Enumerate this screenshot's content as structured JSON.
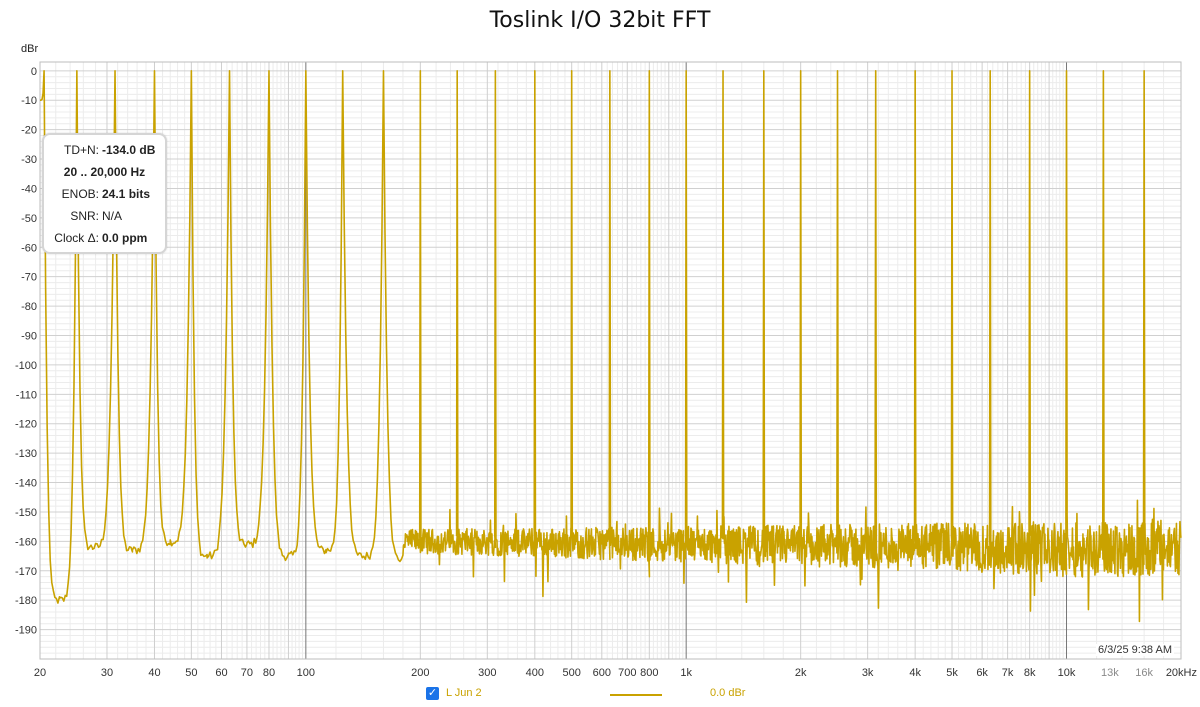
{
  "chart_data": {
    "type": "line",
    "title": "Toslink I/O 32bit FFT",
    "ylabel": "dBr",
    "xlabel": "",
    "x_scale": "log",
    "xlim": [
      20,
      20000
    ],
    "ylim": [
      -200,
      3
    ],
    "grid": true,
    "y_ticks": [
      "0",
      "-10",
      "-20",
      "-30",
      "-40",
      "-50",
      "-60",
      "-70",
      "-80",
      "-90",
      "-100",
      "-110",
      "-120",
      "-130",
      "-140",
      "-150",
      "-160",
      "-170",
      "-180",
      "-190"
    ],
    "x_ticks": [
      {
        "value": 20,
        "label": "20"
      },
      {
        "value": 30,
        "label": "30"
      },
      {
        "value": 40,
        "label": "40"
      },
      {
        "value": 50,
        "label": "50"
      },
      {
        "value": 60,
        "label": "60"
      },
      {
        "value": 70,
        "label": "70"
      },
      {
        "value": 80,
        "label": "80"
      },
      {
        "value": 100,
        "label": "100"
      },
      {
        "value": 200,
        "label": "200"
      },
      {
        "value": 300,
        "label": "300"
      },
      {
        "value": 400,
        "label": "400"
      },
      {
        "value": 500,
        "label": "500"
      },
      {
        "value": 600,
        "label": "600"
      },
      {
        "value": 700,
        "label": "700"
      },
      {
        "value": 800,
        "label": "800"
      },
      {
        "value": 1000,
        "label": "1k"
      },
      {
        "value": 2000,
        "label": "2k"
      },
      {
        "value": 3000,
        "label": "3k"
      },
      {
        "value": 4000,
        "label": "4k"
      },
      {
        "value": 5000,
        "label": "5k"
      },
      {
        "value": 6000,
        "label": "6k"
      },
      {
        "value": 7000,
        "label": "7k"
      },
      {
        "value": 8000,
        "label": "8k"
      },
      {
        "value": 10000,
        "label": "10k"
      },
      {
        "value": 13000,
        "label": "13k",
        "light": true
      },
      {
        "value": 16000,
        "label": "16k",
        "light": true
      },
      {
        "value": 20000,
        "label": "20kHz"
      }
    ],
    "series": [
      {
        "name": "L Jun 2",
        "color": "#c9a200",
        "tone_peaks_hz": [
          20.5,
          25,
          31.5,
          40,
          50,
          63,
          80,
          100,
          125,
          160,
          200,
          250,
          315,
          400,
          500,
          630,
          800,
          1000,
          1250,
          1600,
          2000,
          2500,
          3150,
          4000,
          5000,
          6300,
          8000,
          10000,
          12500,
          16000,
          20000
        ],
        "tone_peak_level_dbr": 0,
        "valleys": [
          {
            "x": 22.5,
            "y": -180
          },
          {
            "x": 27.5,
            "y": -162
          },
          {
            "x": 35,
            "y": -163
          },
          {
            "x": 44,
            "y": -160
          },
          {
            "x": 55,
            "y": -165
          },
          {
            "x": 70,
            "y": -161
          },
          {
            "x": 90,
            "y": -165
          },
          {
            "x": 113,
            "y": -163
          },
          {
            "x": 142,
            "y": -165
          },
          {
            "x": 180,
            "y": -166
          }
        ],
        "noise_floor": [
          {
            "x": 200,
            "y": -160
          },
          {
            "x": 1000,
            "y": -161
          },
          {
            "x": 5000,
            "y": -162
          },
          {
            "x": 10000,
            "y": -163
          },
          {
            "x": 20000,
            "y": -162
          }
        ]
      }
    ]
  },
  "stats": {
    "thd_label": "TD+N:",
    "thd_value": "-134.0 dB",
    "range": "20 .. 20,000 Hz",
    "enob_label": "ENOB:",
    "enob_value": "24.1 bits",
    "snr_label": "SNR:",
    "snr_value": "N/A",
    "clock_label": "Clock Δ:",
    "clock_value": "0.0 ppm"
  },
  "timestamp": "6/3/25 9:38 AM",
  "legend": {
    "checked": true,
    "check_glyph": "✓",
    "name": "L Jun 2",
    "value": "0.0 dBr",
    "color": "#c9a200"
  }
}
